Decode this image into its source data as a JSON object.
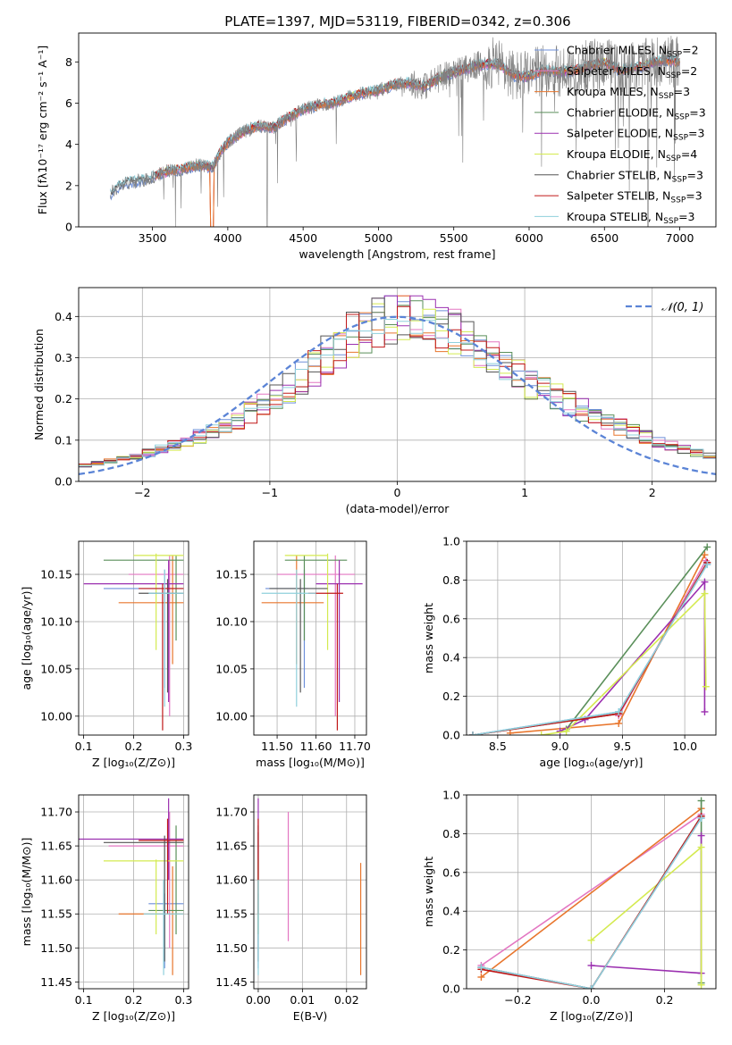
{
  "figure_title": "PLATE=1397, MJD=53119, FIBERID=0342, z=0.306",
  "models": [
    {
      "label": "Chabrier MILES, N",
      "sub": "SSP",
      "tail": "=2",
      "color": "#6d8fd9"
    },
    {
      "label": "Salpeter MILES, N",
      "sub": "SSP",
      "tail": "=2",
      "color": "#e377c2"
    },
    {
      "label": "Kroupa MILES, N",
      "sub": "SSP",
      "tail": "=3",
      "color": "#e8762d"
    },
    {
      "label": "Chabrier ELODIE, N",
      "sub": "SSP",
      "tail": "=3",
      "color": "#5a8f5a"
    },
    {
      "label": "Salpeter ELODIE, N",
      "sub": "SSP",
      "tail": "=3",
      "color": "#9b30b0"
    },
    {
      "label": "Kroupa ELODIE, N",
      "sub": "SSP",
      "tail": "=4",
      "color": "#d4ea50"
    },
    {
      "label": "Chabrier STELIB, N",
      "sub": "SSP",
      "tail": "=3",
      "color": "#555555"
    },
    {
      "label": "Salpeter STELIB, N",
      "sub": "SSP",
      "tail": "=3",
      "color": "#c01818"
    },
    {
      "label": "Kroupa STELIB, N",
      "sub": "SSP",
      "tail": "=3",
      "color": "#8fd0dc"
    }
  ],
  "chart_data": [
    {
      "type": "line",
      "id": "spectrum",
      "xlabel": "wavelength [Angstrom, rest frame]",
      "ylabel": "Flux [fλ10⁻¹⁷ erg cm⁻² s⁻¹ A⁻¹]",
      "xlim": [
        3010,
        7240
      ],
      "ylim": [
        0,
        9.4
      ],
      "xticks": [
        3500,
        4000,
        4500,
        5000,
        5500,
        6000,
        6500,
        7000
      ],
      "yticks": [
        0,
        2,
        4,
        6,
        8
      ],
      "data_color": "#808080",
      "continuum": {
        "x": [
          3220,
          3300,
          3400,
          3500,
          3600,
          3700,
          3800,
          3900,
          3950,
          4000,
          4100,
          4200,
          4300,
          4400,
          4500,
          4600,
          4700,
          4800,
          4900,
          5000,
          5100,
          5200,
          5300,
          5400,
          5500,
          5600,
          5700,
          5800,
          5900,
          6000,
          6100,
          6200,
          6300,
          6400,
          6500,
          6600,
          6700,
          6800,
          6900,
          7000,
          7100,
          7200
        ],
        "y": [
          1.6,
          2.1,
          2.2,
          2.4,
          2.7,
          2.8,
          3.0,
          2.9,
          3.6,
          4.1,
          4.6,
          4.9,
          4.8,
          5.3,
          5.7,
          5.9,
          6.0,
          6.3,
          6.5,
          6.6,
          6.9,
          7.0,
          6.8,
          7.2,
          7.5,
          7.7,
          7.9,
          7.9,
          7.3,
          7.3,
          7.6,
          7.5,
          7.6,
          7.8,
          8.0,
          7.6,
          7.7,
          7.9,
          8.1,
          8.0,
          8.1,
          8.2
        ]
      },
      "data_range": [
        3220,
        7000
      ],
      "model_range": [
        3220,
        7000
      ]
    },
    {
      "type": "bar",
      "id": "residuals",
      "xlabel": "(data-model)/error",
      "ylabel": "Normed distribution",
      "xlim": [
        -2.5,
        2.5
      ],
      "ylim": [
        0,
        0.47
      ],
      "xticks": [
        -2,
        -1,
        0,
        1,
        2
      ],
      "yticks": [
        0.0,
        0.1,
        0.2,
        0.3,
        0.4
      ],
      "legend": "𝒩(0, 1)",
      "legend_position": "top-right",
      "gaussian_color": "#5b84d6",
      "bin_width": 0.1
    },
    {
      "type": "scatter",
      "id": "age_vs_z",
      "xlabel": "Z [log₁₀(Z/Z⊙)]",
      "ylabel": "age  [log₁₀(age/yr)]",
      "xlim": [
        0.09,
        0.31
      ],
      "ylim": [
        9.98,
        10.185
      ],
      "xticks": [
        0.1,
        0.2,
        0.3
      ],
      "yticks": [
        10.0,
        10.05,
        10.1,
        10.15
      ],
      "points": [
        {
          "model": 0,
          "x": 0.262,
          "xerr": [
            0.14,
            0.3
          ],
          "y": 10.135,
          "yerr": [
            10.03,
            10.155
          ]
        },
        {
          "model": 1,
          "x": 0.272,
          "xerr": [
            0.19,
            0.3
          ],
          "y": 10.15,
          "yerr": [
            10.0,
            10.17
          ]
        },
        {
          "model": 2,
          "x": 0.278,
          "xerr": [
            0.17,
            0.3
          ],
          "y": 10.12,
          "yerr": [
            10.055,
            10.17
          ]
        },
        {
          "model": 3,
          "x": 0.285,
          "xerr": [
            0.14,
            0.3
          ],
          "y": 10.165,
          "yerr": [
            10.08,
            10.17
          ]
        },
        {
          "model": 4,
          "x": 0.27,
          "xerr": [
            0.1,
            0.3
          ],
          "y": 10.14,
          "yerr": [
            10.015,
            10.165
          ]
        },
        {
          "model": 5,
          "x": 0.245,
          "xerr": [
            0.2,
            0.3
          ],
          "y": 10.17,
          "yerr": [
            10.07,
            10.172
          ]
        },
        {
          "model": 6,
          "x": 0.268,
          "xerr": [
            0.21,
            0.3
          ],
          "y": 10.13,
          "yerr": [
            10.025,
            10.145
          ]
        },
        {
          "model": 7,
          "x": 0.258,
          "xerr": [
            0.21,
            0.3
          ],
          "y": 10.135,
          "yerr": [
            9.985,
            10.14
          ]
        },
        {
          "model": 8,
          "x": 0.262,
          "xerr": [
            0.23,
            0.3
          ],
          "y": 10.13,
          "yerr": [
            10.01,
            10.155
          ]
        }
      ]
    },
    {
      "type": "scatter",
      "id": "age_vs_mass",
      "xlabel": "mass [log₁₀(M/M⊙)]",
      "ylabel": "",
      "xlim": [
        11.44,
        11.73
      ],
      "ylim": [
        9.98,
        10.185
      ],
      "xticks": [
        11.5,
        11.6,
        11.7
      ],
      "yticks": [
        10.0,
        10.05,
        10.1,
        10.15
      ],
      "points": [
        {
          "model": 0,
          "x": 11.57,
          "xerr": [
            11.47,
            11.58
          ],
          "y": 10.135,
          "yerr": [
            10.03,
            10.155
          ]
        },
        {
          "model": 1,
          "x": 11.65,
          "xerr": [
            11.5,
            11.7
          ],
          "y": 10.15,
          "yerr": [
            10.0,
            10.17
          ]
        },
        {
          "model": 2,
          "x": 11.55,
          "xerr": [
            11.46,
            11.62
          ],
          "y": 10.12,
          "yerr": [
            10.055,
            10.17
          ]
        },
        {
          "model": 3,
          "x": 11.57,
          "xerr": [
            11.52,
            11.68
          ],
          "y": 10.165,
          "yerr": [
            10.08,
            10.17
          ]
        },
        {
          "model": 4,
          "x": 11.66,
          "xerr": [
            11.6,
            11.72
          ],
          "y": 10.14,
          "yerr": [
            10.015,
            10.165
          ]
        },
        {
          "model": 5,
          "x": 11.63,
          "xerr": [
            11.52,
            11.63
          ],
          "y": 10.17,
          "yerr": [
            10.07,
            10.172
          ]
        },
        {
          "model": 6,
          "x": 11.56,
          "xerr": [
            11.48,
            11.63
          ],
          "y": 10.135,
          "yerr": [
            10.025,
            10.145
          ]
        },
        {
          "model": 7,
          "x": 11.655,
          "xerr": [
            11.58,
            11.67
          ],
          "y": 10.13,
          "yerr": [
            9.985,
            10.14
          ]
        },
        {
          "model": 8,
          "x": 11.55,
          "xerr": [
            11.46,
            11.6
          ],
          "y": 10.13,
          "yerr": [
            10.01,
            10.155
          ]
        }
      ]
    },
    {
      "type": "line",
      "id": "weight_vs_age",
      "xlabel": "age  [log₁₀(age/yr)]",
      "ylabel": "mass weight",
      "xlim": [
        8.25,
        10.25
      ],
      "ylim": [
        0,
        1.0
      ],
      "xticks": [
        8.5,
        9.0,
        9.5,
        10.0
      ],
      "yticks": [
        0.0,
        0.2,
        0.4,
        0.6,
        0.8,
        1.0
      ],
      "series": [
        {
          "model": 0,
          "x": [
            8.3,
            9.47,
            10.18
          ],
          "y": [
            0.0,
            0.12,
            0.88
          ]
        },
        {
          "model": 1,
          "x": [
            9.47,
            10.17
          ],
          "y": [
            0.1,
            0.9
          ]
        },
        {
          "model": 2,
          "x": [
            8.6,
            9.47,
            10.16
          ],
          "y": [
            0.01,
            0.06,
            0.93
          ]
        },
        {
          "model": 3,
          "x": [
            9.05,
            10.18
          ],
          "y": [
            0.03,
            0.97
          ]
        },
        {
          "model": 4,
          "x": [
            9.0,
            9.2,
            10.16,
            10.16
          ],
          "y": [
            0.02,
            0.08,
            0.79,
            0.12
          ]
        },
        {
          "model": 5,
          "x": [
            8.85,
            9.05,
            10.16,
            10.17
          ],
          "y": [
            0.0,
            0.02,
            0.73,
            0.25
          ]
        },
        {
          "model": 6,
          "x": [
            8.3,
            9.47,
            10.18
          ],
          "y": [
            0.0,
            0.11,
            0.89
          ]
        },
        {
          "model": 7,
          "x": [
            8.3,
            9.47,
            10.18
          ],
          "y": [
            0.0,
            0.11,
            0.89
          ]
        },
        {
          "model": 8,
          "x": [
            8.3,
            9.47,
            10.18
          ],
          "y": [
            0.0,
            0.12,
            0.88
          ]
        }
      ]
    },
    {
      "type": "scatter",
      "id": "mass_vs_z",
      "xlabel": "Z [log₁₀(Z/Z⊙)]",
      "ylabel": "mass [log₁₀(M/M⊙)]",
      "xlim": [
        0.09,
        0.31
      ],
      "ylim": [
        11.44,
        11.725
      ],
      "xticks": [
        0.1,
        0.2,
        0.3
      ],
      "yticks": [
        11.45,
        11.5,
        11.55,
        11.6,
        11.65,
        11.7
      ],
      "points": [
        {
          "model": 0,
          "x": 0.262,
          "xerr": [
            0.23,
            0.3
          ],
          "y": 11.565,
          "yerr": [
            11.47,
            11.58
          ]
        },
        {
          "model": 1,
          "x": 0.272,
          "xerr": [
            0.15,
            0.3
          ],
          "y": 11.65,
          "yerr": [
            11.5,
            11.7
          ]
        },
        {
          "model": 2,
          "x": 0.278,
          "xerr": [
            0.17,
            0.3
          ],
          "y": 11.55,
          "yerr": [
            11.46,
            11.62
          ]
        },
        {
          "model": 3,
          "x": 0.285,
          "xerr": [
            0.23,
            0.3
          ],
          "y": 11.555,
          "yerr": [
            11.52,
            11.68
          ]
        },
        {
          "model": 4,
          "x": 0.27,
          "xerr": [
            0.09,
            0.3
          ],
          "y": 11.66,
          "yerr": [
            11.6,
            11.72
          ]
        },
        {
          "model": 5,
          "x": 0.245,
          "xerr": [
            0.14,
            0.3
          ],
          "y": 11.628,
          "yerr": [
            11.52,
            11.63
          ]
        },
        {
          "model": 6,
          "x": 0.262,
          "xerr": [
            0.14,
            0.3
          ],
          "y": 11.655,
          "yerr": [
            11.48,
            11.665
          ]
        },
        {
          "model": 7,
          "x": 0.268,
          "xerr": [
            0.21,
            0.3
          ],
          "y": 11.658,
          "yerr": [
            11.55,
            11.69
          ]
        },
        {
          "model": 8,
          "x": 0.26,
          "xerr": [
            0.22,
            0.3
          ],
          "y": 11.55,
          "yerr": [
            11.46,
            11.6
          ]
        }
      ]
    },
    {
      "type": "scatter",
      "id": "mass_vs_ebv",
      "xlabel": "E(B-V)",
      "ylabel": "",
      "xlim": [
        -0.001,
        0.0245
      ],
      "ylim": [
        11.44,
        11.725
      ],
      "xticks": [
        0.0,
        0.01,
        0.02
      ],
      "yticks": [
        11.45,
        11.5,
        11.55,
        11.6,
        11.65,
        11.7
      ],
      "points": [
        {
          "model": 0,
          "x": 0.0,
          "y": 11.565,
          "yerr": [
            11.47,
            11.58
          ]
        },
        {
          "model": 1,
          "x": 0.0068,
          "y": 11.6,
          "yerr": [
            11.51,
            11.7
          ]
        },
        {
          "model": 2,
          "x": 0.0232,
          "y": 11.55,
          "yerr": [
            11.46,
            11.625
          ]
        },
        {
          "model": 3,
          "x": 0.0,
          "y": 11.6,
          "yerr": [
            11.52,
            11.68
          ]
        },
        {
          "model": 4,
          "x": 0.0,
          "y": 11.66,
          "yerr": [
            11.6,
            11.72
          ]
        },
        {
          "model": 5,
          "x": 0.0,
          "y": 11.6,
          "yerr": [
            11.52,
            11.63
          ]
        },
        {
          "model": 6,
          "x": 0.0,
          "y": 11.58,
          "yerr": [
            11.48,
            11.67
          ]
        },
        {
          "model": 7,
          "x": 0.0,
          "y": 11.61,
          "yerr": [
            11.55,
            11.69
          ]
        },
        {
          "model": 8,
          "x": 0.0,
          "y": 11.55,
          "yerr": [
            11.46,
            11.6
          ]
        }
      ]
    },
    {
      "type": "line",
      "id": "weight_vs_z",
      "xlabel": "Z [log₁₀(Z/Z⊙)]",
      "ylabel": "mass weight",
      "xlim": [
        -0.34,
        0.34
      ],
      "ylim": [
        0,
        1.0
      ],
      "xticks": [
        -0.2,
        0.0,
        0.2
      ],
      "yticks": [
        0.0,
        0.2,
        0.4,
        0.6,
        0.8,
        1.0
      ],
      "series": [
        {
          "model": 0,
          "x": [
            -0.3,
            0.0,
            0.3
          ],
          "y": [
            0.11,
            0.0,
            0.88
          ]
        },
        {
          "model": 1,
          "x": [
            -0.3,
            0.3
          ],
          "y": [
            0.12,
            0.9
          ]
        },
        {
          "model": 2,
          "x": [
            -0.3,
            0.3
          ],
          "y": [
            0.06,
            0.93
          ]
        },
        {
          "model": 3,
          "x": [
            0.3,
            0.3
          ],
          "y": [
            0.03,
            0.97
          ]
        },
        {
          "model": 4,
          "x": [
            0.0,
            0.3,
            0.3
          ],
          "y": [
            0.12,
            0.08,
            0.79
          ]
        },
        {
          "model": 5,
          "x": [
            0.0,
            0.3,
            0.3
          ],
          "y": [
            0.25,
            0.73,
            0.02
          ]
        },
        {
          "model": 6,
          "x": [
            -0.3,
            0.0,
            0.3
          ],
          "y": [
            0.11,
            0.0,
            0.89
          ]
        },
        {
          "model": 7,
          "x": [
            -0.3,
            0.0,
            0.3
          ],
          "y": [
            0.1,
            0.0,
            0.89
          ]
        },
        {
          "model": 8,
          "x": [
            -0.3,
            0.0,
            0.3
          ],
          "y": [
            0.11,
            0.0,
            0.88
          ]
        }
      ]
    }
  ]
}
